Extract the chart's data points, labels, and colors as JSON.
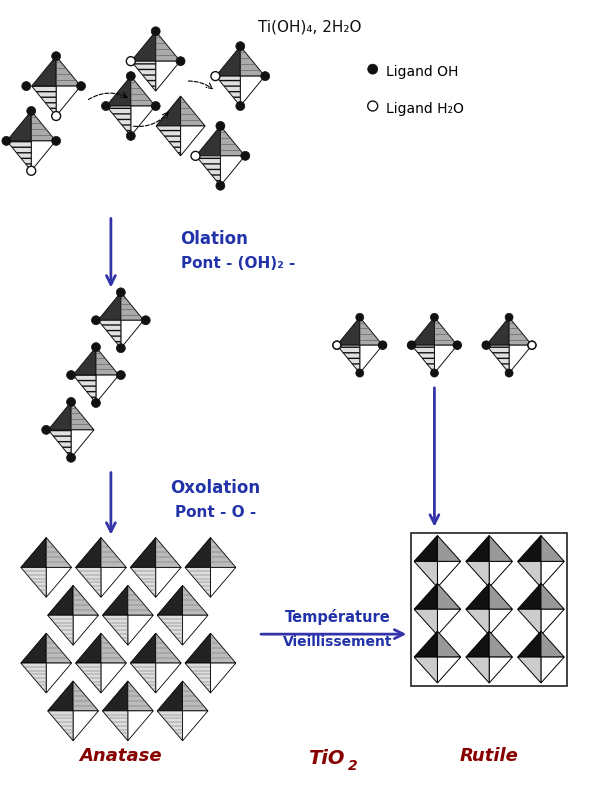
{
  "bg_color": "#ffffff",
  "arrow_color": "#3333aa",
  "text_blue": "#2233aa",
  "text_red": "#880000",
  "text_black": "#111111",
  "label_top": "Ti(OH)₄, 2H₂O",
  "label_olation": "Olation",
  "label_pont_oh": "Pont - (OH)₂ -",
  "label_oxolation": "Oxolation",
  "label_pont_o": "Pont - O -",
  "label_temperature": "Température",
  "label_vieillissement": "Vieillissement",
  "label_anatase": "Anatase",
  "label_rutile": "Rutile",
  "label_ligand_oh": "Ligand OH",
  "label_ligand_h2o": "Ligand H₂O",
  "figsize": [
    6.15,
    7.86
  ],
  "dpi": 100
}
